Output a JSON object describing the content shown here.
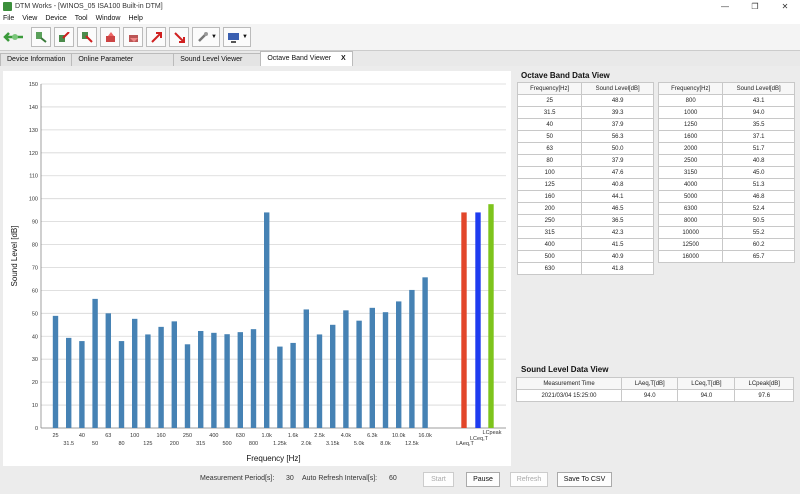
{
  "window": {
    "title": "DTM Works - [WINOS_05 ISA100 Built-in DTM]",
    "minimize_glyph": "—",
    "maximize_glyph": "❐",
    "close_glyph": "✕"
  },
  "menu": [
    "File",
    "View",
    "Device",
    "Tool",
    "Window",
    "Help"
  ],
  "toolbar": {
    "icons": [
      "connect-icon",
      "device-connect-icon",
      "upload-icon",
      "download-icon",
      "read-icon",
      "write-icon",
      "export-icon",
      "import-icon",
      "settings-icon",
      "monitor-icon"
    ]
  },
  "tabs": {
    "items": [
      "Device Information",
      "Online Parameter",
      "Sound Level Viewer",
      "Octave Band Viewer"
    ],
    "active_index": 3,
    "close_label": "X"
  },
  "chart_data": {
    "type": "bar",
    "xlabel": "Frequency [Hz]",
    "ylabel": "Sound Level [dB]",
    "ylim": [
      0,
      150
    ],
    "yticks": [
      0,
      10,
      20,
      30,
      40,
      50,
      60,
      70,
      80,
      90,
      100,
      110,
      120,
      130,
      140,
      150
    ],
    "grid": true,
    "categories": [
      "25",
      "31.5",
      "40",
      "50",
      "63",
      "80",
      "100",
      "125",
      "160",
      "200",
      "250",
      "315",
      "400",
      "500",
      "630",
      "800",
      "1.0k",
      "1.25k",
      "1.6k",
      "2.0k",
      "2.5k",
      "3.15k",
      "4.0k",
      "5.0k",
      "6.3k",
      "8.0k",
      "10.0k",
      "12.5k",
      "16.0k"
    ],
    "values": [
      48.9,
      39.3,
      37.9,
      56.3,
      50.0,
      37.9,
      47.6,
      40.8,
      44.1,
      46.5,
      36.5,
      42.3,
      41.5,
      40.9,
      41.8,
      43.1,
      94.0,
      35.5,
      37.1,
      51.7,
      40.8,
      45.0,
      51.3,
      46.8,
      52.4,
      50.5,
      55.2,
      60.2,
      65.7
    ],
    "bar_color": "#4682b4",
    "summary_categories": [
      "LAeq,T",
      "LCeq,T",
      "LCpeak"
    ],
    "summary_values": [
      94.0,
      94.0,
      97.6
    ],
    "summary_colors": [
      "#e2462a",
      "#1e3cf0",
      "#7ec41c"
    ]
  },
  "octave_table": {
    "title": "Octave Band Data View",
    "headers": [
      "Frequency[Hz]",
      "Sound Level[dB]"
    ],
    "left_rows": [
      [
        "25",
        "48.9"
      ],
      [
        "31.5",
        "39.3"
      ],
      [
        "40",
        "37.9"
      ],
      [
        "50",
        "56.3"
      ],
      [
        "63",
        "50.0"
      ],
      [
        "80",
        "37.9"
      ],
      [
        "100",
        "47.6"
      ],
      [
        "125",
        "40.8"
      ],
      [
        "160",
        "44.1"
      ],
      [
        "200",
        "46.5"
      ],
      [
        "250",
        "36.5"
      ],
      [
        "315",
        "42.3"
      ],
      [
        "400",
        "41.5"
      ],
      [
        "500",
        "40.9"
      ],
      [
        "630",
        "41.8"
      ]
    ],
    "right_rows": [
      [
        "800",
        "43.1"
      ],
      [
        "1000",
        "94.0"
      ],
      [
        "1250",
        "35.5"
      ],
      [
        "1600",
        "37.1"
      ],
      [
        "2000",
        "51.7"
      ],
      [
        "2500",
        "40.8"
      ],
      [
        "3150",
        "45.0"
      ],
      [
        "4000",
        "51.3"
      ],
      [
        "5000",
        "46.8"
      ],
      [
        "6300",
        "52.4"
      ],
      [
        "8000",
        "50.5"
      ],
      [
        "10000",
        "55.2"
      ],
      [
        "12500",
        "60.2"
      ],
      [
        "16000",
        "65.7"
      ]
    ]
  },
  "sound_level_table": {
    "title": "Sound Level Data View",
    "headers": [
      "Measurement Time",
      "LAeq,T[dB]",
      "LCeq,T[dB]",
      "LCpeak[dB]"
    ],
    "row": [
      "2021/03/04 15:25:00",
      "94.0",
      "94.0",
      "97.6"
    ]
  },
  "controls": {
    "measurement_period_label": "Measurement Period[s]:",
    "measurement_period_value": "30",
    "auto_refresh_label": "Auto Refresh Interval[s]:",
    "auto_refresh_value": "60",
    "start_label": "Start",
    "pause_label": "Pause",
    "refresh_label": "Refresh",
    "save_csv_label": "Save To CSV"
  }
}
